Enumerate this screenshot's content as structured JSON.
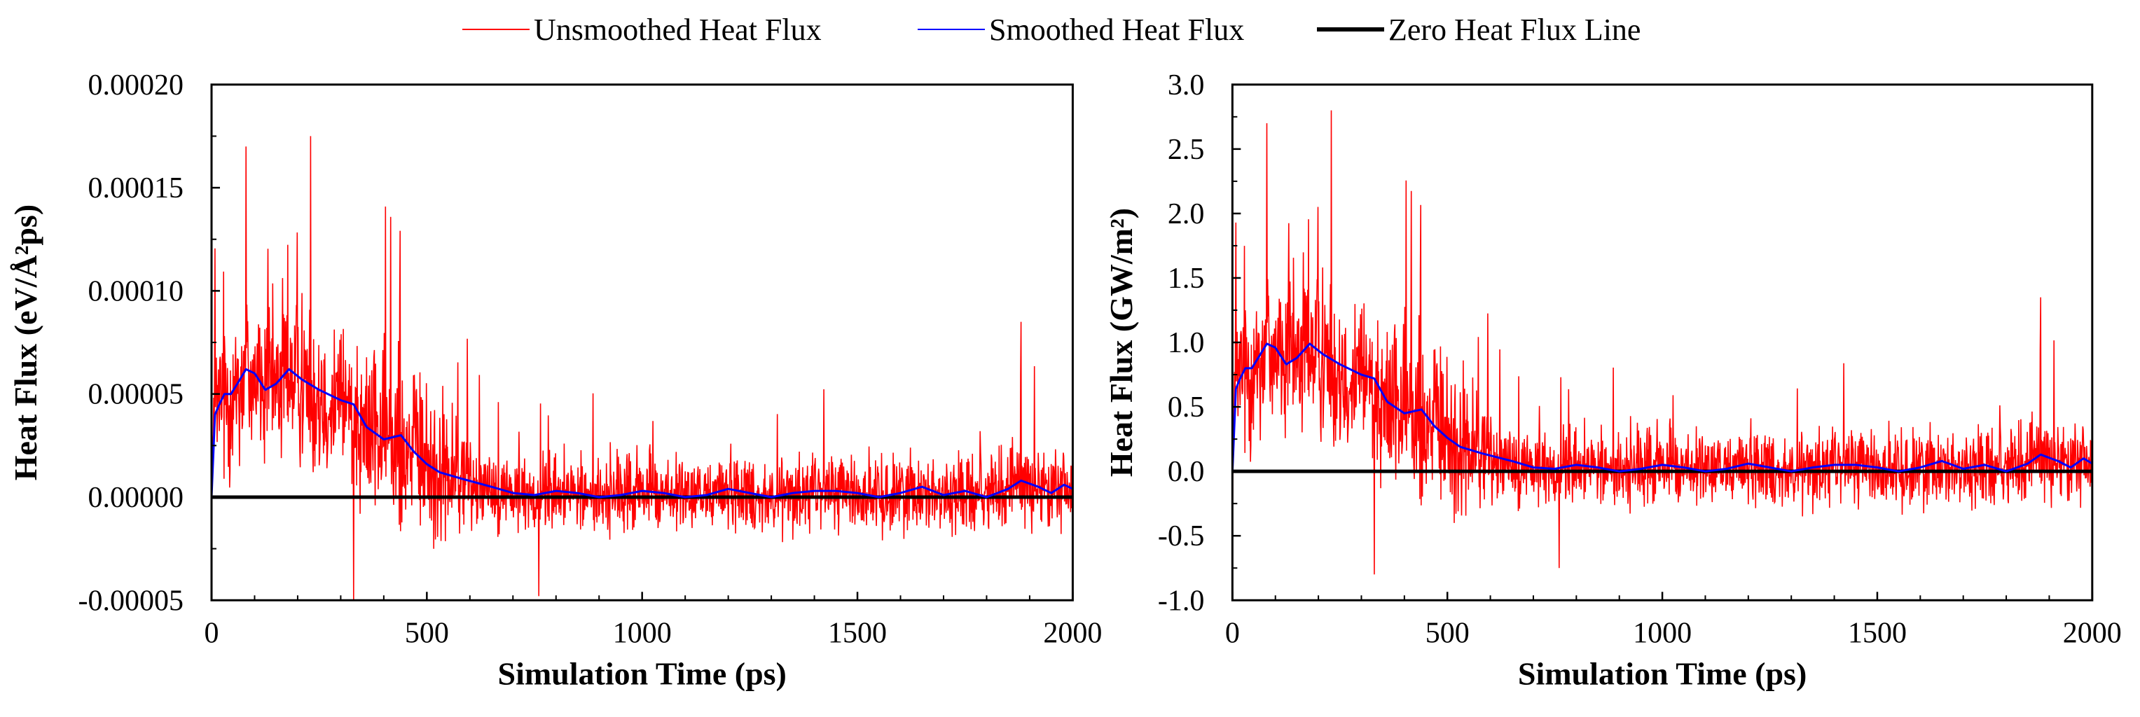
{
  "legend": [
    {
      "label": "Unsmoothed Heat Flux",
      "color": "#ff0000",
      "style": "thin"
    },
    {
      "label": "Smoothed Heat Flux",
      "color": "#0000ff",
      "style": "thin"
    },
    {
      "label": "Zero Heat Flux Line",
      "color": "#000000",
      "style": "thick"
    }
  ],
  "colors": {
    "unsmoothed": "#ff0000",
    "smoothed": "#0000ff",
    "zero": "#000000"
  },
  "chart_data": [
    {
      "type": "line",
      "title": "",
      "xlabel": "Simulation Time (ps)",
      "ylabel": "Heat Flux (eV/Å²ps)",
      "xlim": [
        0,
        2000
      ],
      "ylim": [
        -5e-05,
        0.0002
      ],
      "xticks": [
        0,
        500,
        1000,
        1500,
        2000
      ],
      "xtick_labels": [
        "0",
        "500",
        "1000",
        "1500",
        "2000"
      ],
      "yticks": [
        -5e-05,
        0,
        5e-05,
        0.0001,
        0.00015,
        0.0002
      ],
      "ytick_labels": [
        "-0.00005",
        "0.00000",
        "0.00005",
        "0.00010",
        "0.00015",
        "0.00020"
      ],
      "series": [
        {
          "name": "Unsmoothed Heat Flux",
          "kind": "noisy",
          "amp_scale": 6e-05,
          "peaks": [
            [
              230,
              0.000175
            ],
            [
              80,
              0.00017
            ],
            [
              1880,
              8.5e-05
            ],
            [
              330,
              -5e-05
            ],
            [
              760,
              -4.8e-05
            ]
          ]
        },
        {
          "name": "Smoothed Heat Flux",
          "x": [
            0,
            8,
            18,
            30,
            45,
            60,
            80,
            100,
            125,
            150,
            180,
            210,
            250,
            300,
            330,
            360,
            400,
            440,
            470,
            500,
            530,
            580,
            650,
            700,
            750,
            800,
            850,
            900,
            950,
            1000,
            1050,
            1100,
            1150,
            1200,
            1250,
            1300,
            1350,
            1400,
            1450,
            1500,
            1550,
            1600,
            1650,
            1700,
            1750,
            1800,
            1850,
            1880,
            1920,
            1950,
            1980,
            2000
          ],
          "y": [
            0,
            4e-05,
            4.5e-05,
            5e-05,
            5e-05,
            5.5e-05,
            6.2e-05,
            6e-05,
            5.2e-05,
            5.5e-05,
            6.2e-05,
            5.7e-05,
            5.2e-05,
            4.7e-05,
            4.5e-05,
            3.4e-05,
            2.8e-05,
            3e-05,
            2.2e-05,
            1.6e-05,
            1.2e-05,
            9e-06,
            5e-06,
            2e-06,
            1e-06,
            3e-06,
            2e-06,
            0.0,
            1e-06,
            3e-06,
            2e-06,
            0.0,
            1e-06,
            4e-06,
            2e-06,
            0.0,
            2e-06,
            3e-06,
            3e-06,
            2e-06,
            0.0,
            2e-06,
            5e-06,
            1e-06,
            3e-06,
            0.0,
            4e-06,
            8e-06,
            5e-06,
            2e-06,
            6e-06,
            4e-06
          ]
        },
        {
          "name": "Zero Heat Flux Line",
          "x": [
            0,
            2000
          ],
          "y": [
            0,
            0
          ]
        }
      ]
    },
    {
      "type": "line",
      "title": "",
      "xlabel": "Simulation Time (ps)",
      "ylabel": "Heat Flux (GW/m²)",
      "xlim": [
        0,
        2000
      ],
      "ylim": [
        -1.0,
        3.0
      ],
      "xticks": [
        0,
        500,
        1000,
        1500,
        2000
      ],
      "xtick_labels": [
        "0",
        "500",
        "1000",
        "1500",
        "2000"
      ],
      "yticks": [
        -1.0,
        -0.5,
        0.0,
        0.5,
        1.0,
        1.5,
        2.0,
        2.5,
        3.0
      ],
      "ytick_labels": [
        "-1.0",
        "-0.5",
        "0.0",
        "0.5",
        "1.0",
        "1.5",
        "2.0",
        "2.5",
        "3.0"
      ],
      "series": [
        {
          "name": "Unsmoothed Heat Flux",
          "kind": "noisy",
          "amp_scale": 0.96,
          "peaks": [
            [
              230,
              2.8
            ],
            [
              80,
              2.7
            ],
            [
              1880,
              1.35
            ],
            [
              330,
              -0.8
            ],
            [
              760,
              -0.75
            ]
          ]
        },
        {
          "name": "Smoothed Heat Flux",
          "x": [
            0,
            8,
            18,
            30,
            45,
            60,
            80,
            100,
            125,
            150,
            180,
            210,
            250,
            300,
            330,
            360,
            400,
            440,
            470,
            500,
            530,
            580,
            650,
            700,
            750,
            800,
            850,
            900,
            950,
            1000,
            1050,
            1100,
            1150,
            1200,
            1250,
            1300,
            1350,
            1400,
            1450,
            1500,
            1550,
            1600,
            1650,
            1700,
            1750,
            1800,
            1850,
            1880,
            1920,
            1950,
            1980,
            2000
          ],
          "y": [
            0,
            0.64,
            0.72,
            0.8,
            0.8,
            0.88,
            0.99,
            0.96,
            0.83,
            0.88,
            0.99,
            0.91,
            0.83,
            0.75,
            0.72,
            0.54,
            0.45,
            0.48,
            0.35,
            0.26,
            0.19,
            0.14,
            0.08,
            0.03,
            0.02,
            0.05,
            0.03,
            0.0,
            0.02,
            0.05,
            0.03,
            0.0,
            0.02,
            0.06,
            0.03,
            0.0,
            0.03,
            0.05,
            0.05,
            0.03,
            0.0,
            0.03,
            0.08,
            0.02,
            0.05,
            0.0,
            0.06,
            0.13,
            0.08,
            0.03,
            0.1,
            0.06
          ]
        },
        {
          "name": "Zero Heat Flux Line",
          "x": [
            0,
            2000
          ],
          "y": [
            0,
            0
          ]
        }
      ]
    }
  ]
}
